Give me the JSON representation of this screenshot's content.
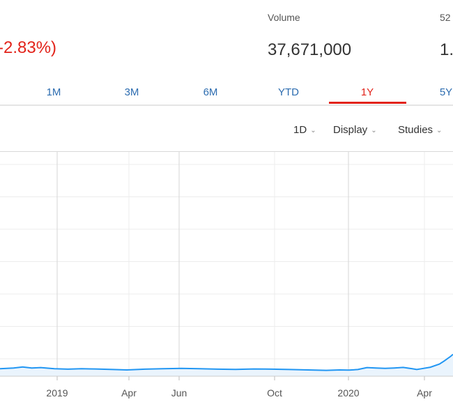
{
  "quote": {
    "change_percent": "-2.83%)",
    "volume_label": "Volume",
    "volume_value": "37,671,000",
    "week52_label": "52",
    "week52_value": "1."
  },
  "range_tabs": [
    {
      "label": "1M",
      "active": false
    },
    {
      "label": "3M",
      "active": false
    },
    {
      "label": "6M",
      "active": false
    },
    {
      "label": "YTD",
      "active": false
    },
    {
      "label": "1Y",
      "active": true
    },
    {
      "label": "5Y",
      "active": false
    }
  ],
  "toolbar": {
    "interval": "1D",
    "display": "Display",
    "studies": "Studies"
  },
  "colors": {
    "accent_red": "#e2231a",
    "link_blue": "#2c6cb0",
    "line_blue": "#2196f3",
    "area_fill": "#eaf4fd"
  },
  "chart_data": {
    "type": "line",
    "x_tick_labels": [
      "2019",
      "Apr",
      "Jun",
      "Oct",
      "2020",
      "Apr"
    ],
    "grid": true,
    "series": [
      {
        "values": [
          [
            0.0,
            0.06
          ],
          [
            0.03,
            0.1
          ],
          [
            0.05,
            0.15
          ],
          [
            0.07,
            0.1
          ],
          [
            0.09,
            0.12
          ],
          [
            0.12,
            0.06
          ],
          [
            0.15,
            0.04
          ],
          [
            0.18,
            0.06
          ],
          [
            0.21,
            0.05
          ],
          [
            0.25,
            0.02
          ],
          [
            0.28,
            0.0
          ],
          [
            0.32,
            0.04
          ],
          [
            0.36,
            0.06
          ],
          [
            0.4,
            0.08
          ],
          [
            0.44,
            0.06
          ],
          [
            0.48,
            0.04
          ],
          [
            0.52,
            0.03
          ],
          [
            0.56,
            0.05
          ],
          [
            0.6,
            0.04
          ],
          [
            0.64,
            0.02
          ],
          [
            0.68,
            0.0
          ],
          [
            0.72,
            -0.02
          ],
          [
            0.75,
            0.0
          ],
          [
            0.77,
            -0.01
          ],
          [
            0.79,
            0.02
          ],
          [
            0.81,
            0.12
          ],
          [
            0.83,
            0.1
          ],
          [
            0.85,
            0.08
          ],
          [
            0.87,
            0.1
          ],
          [
            0.89,
            0.13
          ],
          [
            0.91,
            0.06
          ],
          [
            0.92,
            0.02
          ],
          [
            0.93,
            0.06
          ],
          [
            0.95,
            0.14
          ],
          [
            0.97,
            0.3
          ],
          [
            0.98,
            0.45
          ],
          [
            0.995,
            0.7
          ],
          [
            1.0,
            0.8
          ]
        ]
      }
    ]
  }
}
